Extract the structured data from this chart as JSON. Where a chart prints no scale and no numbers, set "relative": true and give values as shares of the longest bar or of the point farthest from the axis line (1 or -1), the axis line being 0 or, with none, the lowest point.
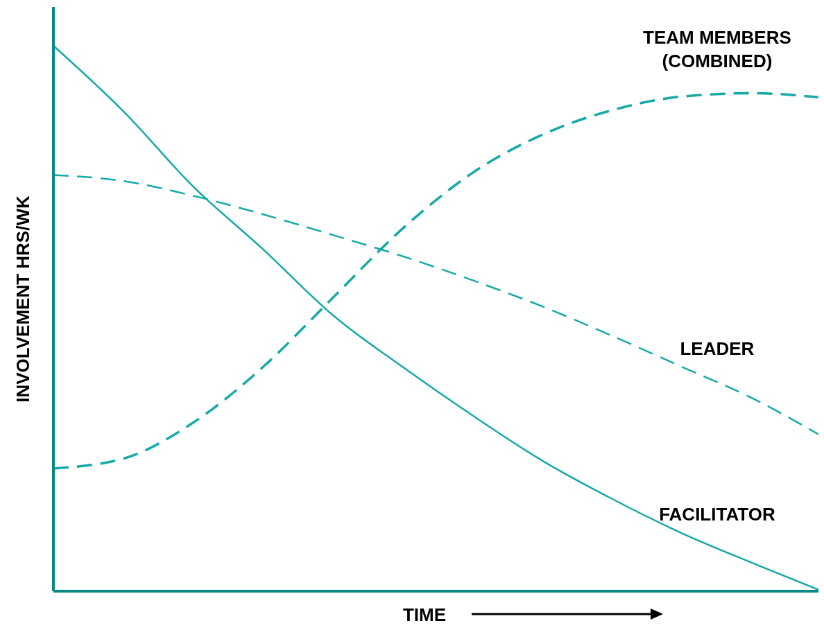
{
  "chart_data": {
    "type": "line",
    "relative": true,
    "xlabel": "TIME",
    "ylabel": "INVOLVEMENT HRS/WK",
    "categories": [
      null,
      null,
      null,
      null,
      null,
      null,
      null,
      null,
      null,
      null,
      null,
      null
    ],
    "legend": false,
    "marker": "none",
    "series": [
      {
        "name": "FACILITATOR",
        "color": "#16a9a6",
        "line_style": "solid",
        "values": [
          1,
          0.88,
          0.742,
          0.627,
          0.506,
          0.411,
          0.322,
          0.239,
          0.169,
          0.106,
          0.052,
          0
        ]
      },
      {
        "name": "LEADER",
        "color": "#16a9a6",
        "line_style": "dashed",
        "values": [
          0.763,
          0.752,
          0.725,
          0.691,
          0.653,
          0.614,
          0.57,
          0.522,
          0.468,
          0.411,
          0.354,
          0.284
        ]
      },
      {
        "name": "TEAM MEMBERS (COMBINED)",
        "color": "#16a9a6",
        "line_style": "dashed",
        "values": [
          0.225,
          0.243,
          0.309,
          0.411,
          0.538,
          0.665,
          0.767,
          0.837,
          0.882,
          0.907,
          0.913,
          0.905
        ]
      }
    ]
  }
}
